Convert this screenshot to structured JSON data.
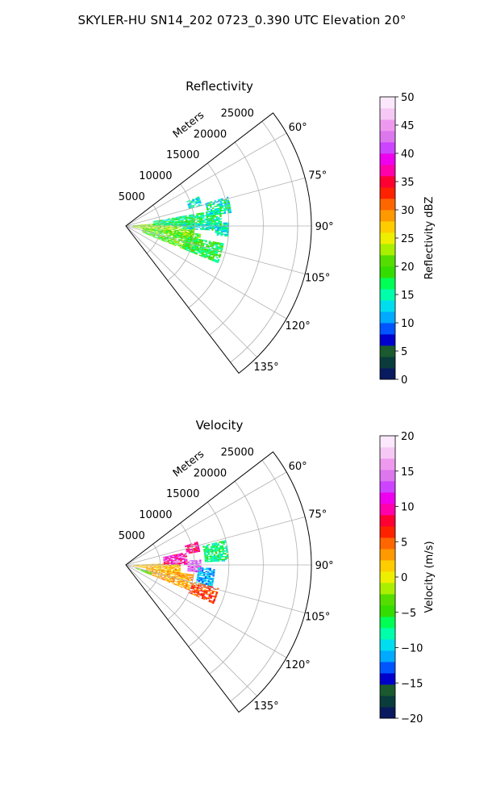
{
  "figure_title": "SKYLER-HU  SN14_202  0723_0.390 UTC Elevation 20°",
  "colors": {
    "reflectivity_stops": [
      "#0a1a5e",
      "#0a3c3c",
      "#1a5a2e",
      "#0000cc",
      "#0055ff",
      "#00aaff",
      "#00ddee",
      "#00ffaa",
      "#00ff55",
      "#33dd00",
      "#55dd00",
      "#aaee00",
      "#eeee00",
      "#ffcc00",
      "#ff9900",
      "#ff6600",
      "#ff2200",
      "#ff0033",
      "#ff00aa",
      "#ee00ee",
      "#cc44ff",
      "#dd77ee",
      "#ee99ee",
      "#f5c8f5",
      "#fce8fc"
    ],
    "velocity_stops": [
      "#0a1a5e",
      "#0a3c3c",
      "#1a5a2e",
      "#0000cc",
      "#0055ff",
      "#00aaff",
      "#00ddee",
      "#00ffaa",
      "#00ff55",
      "#33dd00",
      "#55dd00",
      "#aaee00",
      "#eeee00",
      "#ffcc00",
      "#ff9900",
      "#ff6600",
      "#ff2200",
      "#ff0033",
      "#ff00aa",
      "#ee00ee",
      "#cc44ff",
      "#dd77ee",
      "#ee99ee",
      "#f5c8f5",
      "#fce8fc"
    ]
  },
  "chart_data": [
    {
      "type": "heatmap",
      "projection": "polar-sector",
      "title": "Reflectivity",
      "radial_axis_label": "Meters",
      "radial_ticks": [
        5000,
        10000,
        15000,
        20000,
        25000
      ],
      "radial_tick_labels": [
        "5000",
        "10000",
        "15000",
        "20000",
        "25000"
      ],
      "rlim": [
        0,
        27000
      ],
      "theta_range_deg": [
        52.5,
        142.5
      ],
      "theta_ticks_deg": [
        60,
        75,
        90,
        105,
        120,
        135
      ],
      "theta_tick_labels": [
        "60°",
        "75°",
        "90°",
        "105°",
        "120°",
        "135°"
      ],
      "grid": true,
      "colorbar": {
        "label": "Reflectivity dBZ",
        "range": [
          0,
          50
        ],
        "ticks": [
          0,
          5,
          10,
          15,
          20,
          25,
          30,
          35,
          40,
          45,
          50
        ],
        "tick_labels": [
          "0",
          "5",
          "10",
          "15",
          "20",
          "25",
          "30",
          "35",
          "40",
          "45",
          "50"
        ]
      },
      "echo_regions": [
        {
          "theta_deg": [
            85,
            100
          ],
          "r_m": [
            1000,
            10000
          ],
          "value": 22
        },
        {
          "theta_deg": [
            96,
            112
          ],
          "r_m": [
            2500,
            11000
          ],
          "value": 20
        },
        {
          "theta_deg": [
            80,
            90
          ],
          "r_m": [
            4000,
            14000
          ],
          "value": 16
        },
        {
          "theta_deg": [
            88,
            93
          ],
          "r_m": [
            8000,
            15000
          ],
          "value": 15
        },
        {
          "theta_deg": [
            100,
            112
          ],
          "r_m": [
            9000,
            14500
          ],
          "value": 18
        },
        {
          "theta_deg": [
            74,
            83
          ],
          "r_m": [
            12000,
            15500
          ],
          "value": 15
        },
        {
          "theta_deg": [
            68,
            75
          ],
          "r_m": [
            9500,
            11500
          ],
          "value": 14
        },
        {
          "theta_deg": [
            90,
            96
          ],
          "r_m": [
            13000,
            15000
          ],
          "value": 14
        }
      ]
    },
    {
      "type": "heatmap",
      "projection": "polar-sector",
      "title": "Velocity",
      "radial_axis_label": "Meters",
      "radial_ticks": [
        5000,
        10000,
        15000,
        20000,
        25000
      ],
      "radial_tick_labels": [
        "5000",
        "10000",
        "15000",
        "20000",
        "25000"
      ],
      "rlim": [
        0,
        27000
      ],
      "theta_range_deg": [
        52.5,
        142.5
      ],
      "theta_ticks_deg": [
        60,
        75,
        90,
        105,
        120,
        135
      ],
      "theta_tick_labels": [
        "60°",
        "75°",
        "90°",
        "105°",
        "120°",
        "135°"
      ],
      "grid": true,
      "colorbar": {
        "label": "Velocity (m/s)",
        "range": [
          -20,
          20
        ],
        "ticks": [
          -20,
          -15,
          -10,
          -5,
          0,
          5,
          10,
          15,
          20
        ],
        "tick_labels": [
          "−20",
          "−15",
          "−10",
          "−5",
          "0",
          "5",
          "10",
          "15",
          "20"
        ]
      },
      "echo_regions": [
        {
          "theta_deg": [
            88,
            100
          ],
          "r_m": [
            1000,
            8000
          ],
          "value": 2
        },
        {
          "theta_deg": [
            98,
            112
          ],
          "r_m": [
            3000,
            10000
          ],
          "value": 3
        },
        {
          "theta_deg": [
            78,
            90
          ],
          "r_m": [
            5500,
            9000
          ],
          "value": 10
        },
        {
          "theta_deg": [
            86,
            96
          ],
          "r_m": [
            9000,
            11000
          ],
          "value": 14
        },
        {
          "theta_deg": [
            92,
            104
          ],
          "r_m": [
            10500,
            13000
          ],
          "value": -11
        },
        {
          "theta_deg": [
            104,
            114
          ],
          "r_m": [
            10000,
            14000
          ],
          "value": 6
        },
        {
          "theta_deg": [
            76,
            88
          ],
          "r_m": [
            11500,
            15000
          ],
          "value": -7
        },
        {
          "theta_deg": [
            72,
            80
          ],
          "r_m": [
            9000,
            11000
          ],
          "value": 9
        },
        {
          "theta_deg": [
            106,
            112
          ],
          "r_m": [
            1500,
            4000
          ],
          "value": -4
        }
      ]
    }
  ]
}
